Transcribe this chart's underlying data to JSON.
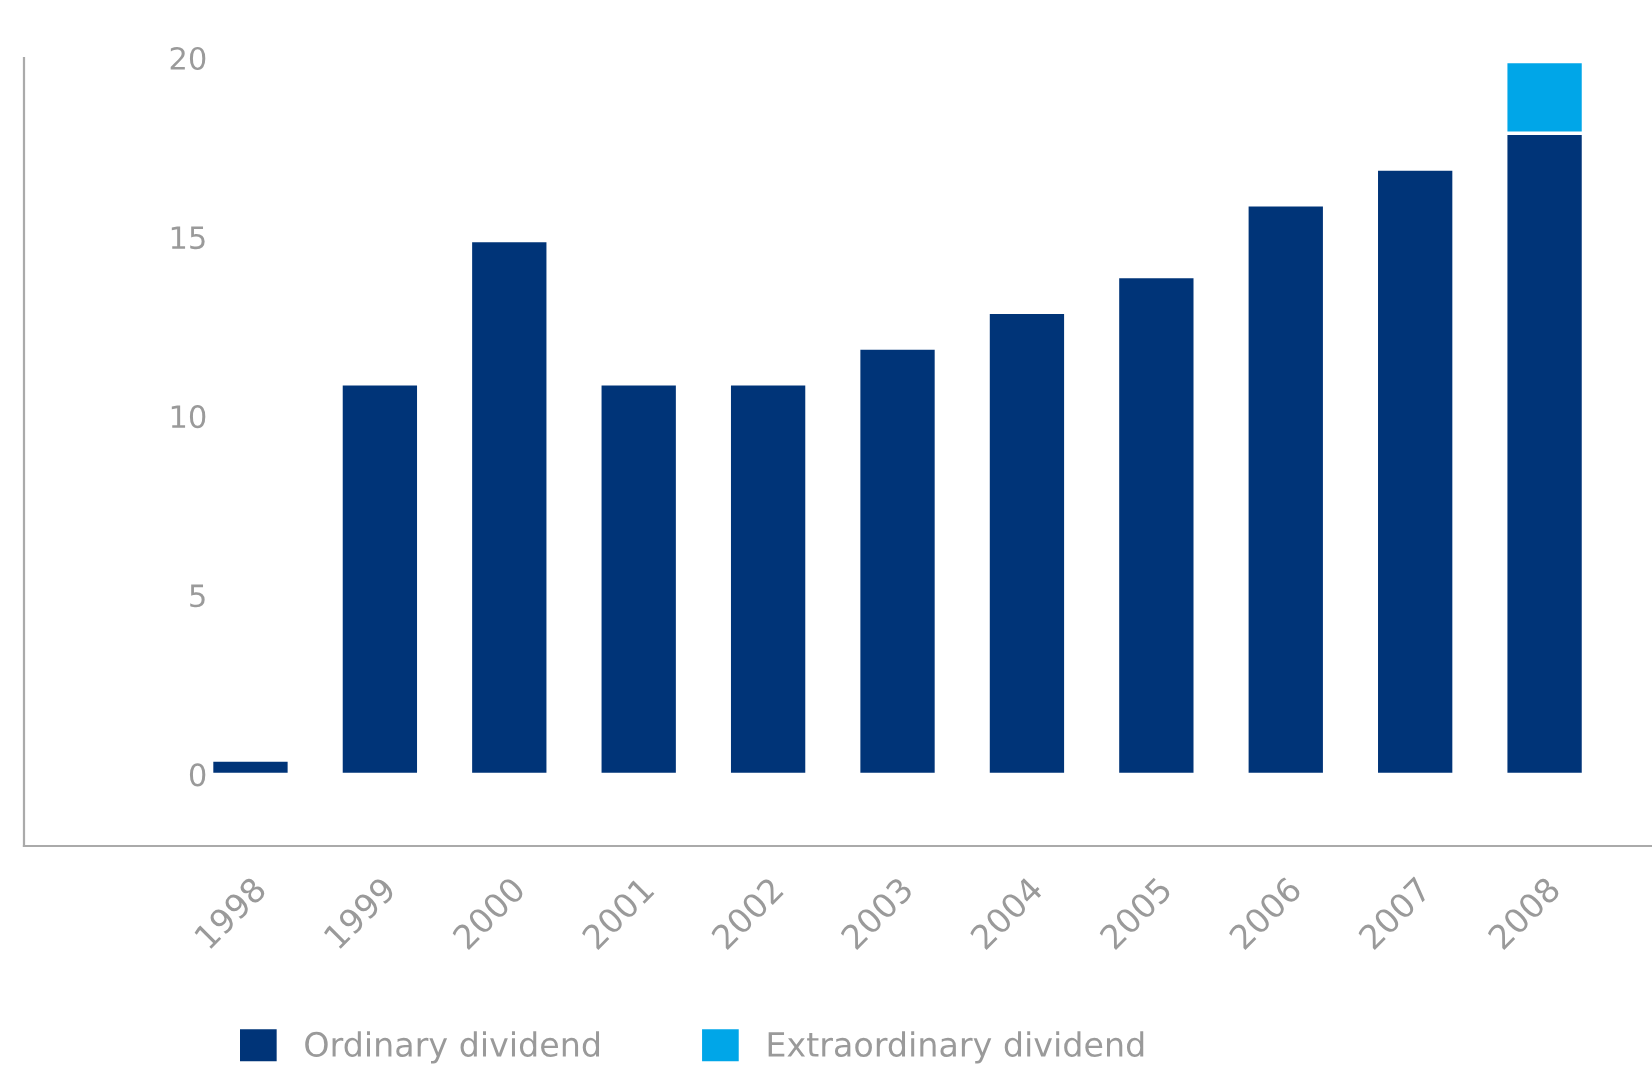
{
  "chart_data": {
    "type": "bar",
    "stacked": true,
    "categories": [
      "1998",
      "1999",
      "2000",
      "2001",
      "2002",
      "2003",
      "2004",
      "2005",
      "2006",
      "2007",
      "2008"
    ],
    "series": [
      {
        "name": "Ordinary dividend",
        "color": "#003478",
        "values": [
          0.4,
          10.9,
          14.9,
          10.9,
          10.9,
          11.9,
          12.9,
          13.9,
          15.9,
          16.9,
          17.9
        ]
      },
      {
        "name": "Extraordinary dividend",
        "color": "#00a6e8",
        "values": [
          null,
          null,
          null,
          null,
          null,
          null,
          null,
          null,
          null,
          null,
          2.0
        ]
      }
    ],
    "ylim": [
      -2,
      20
    ],
    "yticks": [
      0,
      5,
      10,
      15,
      20
    ],
    "grid": false,
    "legend": "bottom"
  }
}
